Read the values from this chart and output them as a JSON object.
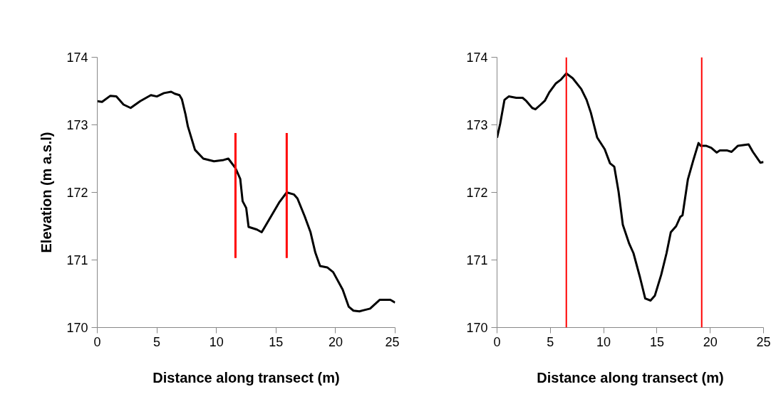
{
  "chart_data": [
    {
      "type": "line",
      "xlabel": "Distance along transect (m)",
      "ylabel": "Elevation (m a.s.l)",
      "xlim": [
        0,
        25
      ],
      "ylim": [
        170,
        174
      ],
      "xticks": [
        0,
        5,
        10,
        15,
        20,
        25
      ],
      "yticks": [
        170,
        171,
        172,
        173,
        174
      ],
      "grid": false,
      "marker": "none",
      "line_style": "solid",
      "series": [
        {
          "color": "#000000",
          "x": [
            0,
            0.4,
            1.1,
            1.6,
            2.2,
            2.8,
            3.6,
            4.5,
            5.0,
            5.6,
            6.2,
            6.5,
            6.9,
            7.1,
            7.4,
            7.6,
            8.2,
            8.9,
            9.8,
            10.6,
            11.0,
            11.6,
            12.0,
            12.2,
            12.5,
            12.7,
            13.4,
            13.8,
            14.6,
            15.3,
            15.9,
            16.5,
            16.8,
            17.4,
            17.9,
            18.3,
            18.7,
            19.3,
            19.8,
            20.6,
            21.1,
            21.5,
            22.0,
            22.9,
            23.7,
            24.6,
            25.0
          ],
          "values": [
            173.35,
            173.34,
            173.43,
            173.42,
            173.3,
            173.25,
            173.35,
            173.44,
            173.42,
            173.47,
            173.49,
            173.46,
            173.44,
            173.38,
            173.16,
            172.98,
            172.63,
            172.5,
            172.46,
            172.48,
            172.5,
            172.36,
            172.2,
            171.87,
            171.77,
            171.49,
            171.45,
            171.41,
            171.65,
            171.86,
            172.0,
            171.97,
            171.91,
            171.65,
            171.41,
            171.11,
            170.91,
            170.89,
            170.82,
            170.56,
            170.31,
            170.25,
            170.24,
            170.28,
            170.41,
            170.41,
            170.37
          ]
        },
        {
          "color": "#ff0000",
          "x": [
            11.6,
            11.6
          ],
          "values": [
            171.03,
            172.88
          ]
        },
        {
          "color": "#ff0000",
          "x": [
            15.9,
            15.9
          ],
          "values": [
            171.03,
            172.88
          ]
        }
      ]
    },
    {
      "type": "line",
      "xlabel": "Distance along transect (m)",
      "xlim": [
        0,
        25
      ],
      "ylim": [
        170,
        174
      ],
      "xticks": [
        0,
        5,
        10,
        15,
        20,
        25
      ],
      "yticks": [
        170,
        171,
        172,
        173,
        174
      ],
      "grid": false,
      "marker": "none",
      "line_style": "solid",
      "ref_lines": [
        {
          "axis": "x",
          "value": 6.5,
          "color": "#ff0000"
        },
        {
          "axis": "x",
          "value": 19.2,
          "color": "#ff0000"
        }
      ],
      "series": [
        {
          "color": "#000000",
          "x": [
            0,
            0.3,
            0.7,
            1.1,
            1.8,
            2.4,
            2.7,
            3.3,
            3.6,
            4.1,
            4.5,
            4.9,
            5.5,
            6.0,
            6.5,
            7.1,
            7.9,
            8.4,
            8.8,
            9.4,
            10.1,
            10.6,
            11.0,
            11.4,
            11.8,
            12.4,
            12.8,
            13.4,
            13.9,
            14.4,
            14.8,
            15.4,
            15.9,
            16.3,
            16.8,
            17.2,
            17.4,
            17.9,
            18.4,
            18.9,
            19.1,
            19.6,
            20.1,
            20.6,
            20.9,
            21.6,
            22.0,
            22.6,
            23.6,
            24.0,
            24.7,
            25.0
          ],
          "values": [
            172.81,
            173.02,
            173.37,
            173.42,
            173.4,
            173.4,
            173.36,
            173.25,
            173.23,
            173.3,
            173.36,
            173.48,
            173.61,
            173.67,
            173.76,
            173.69,
            173.53,
            173.37,
            173.18,
            172.81,
            172.64,
            172.43,
            172.38,
            172.01,
            171.52,
            171.24,
            171.1,
            170.75,
            170.43,
            170.4,
            170.47,
            170.78,
            171.1,
            171.41,
            171.5,
            171.64,
            171.66,
            172.19,
            172.47,
            172.73,
            172.69,
            172.69,
            172.66,
            172.59,
            172.62,
            172.62,
            172.6,
            172.69,
            172.71,
            172.6,
            172.44,
            172.45
          ]
        }
      ]
    }
  ]
}
